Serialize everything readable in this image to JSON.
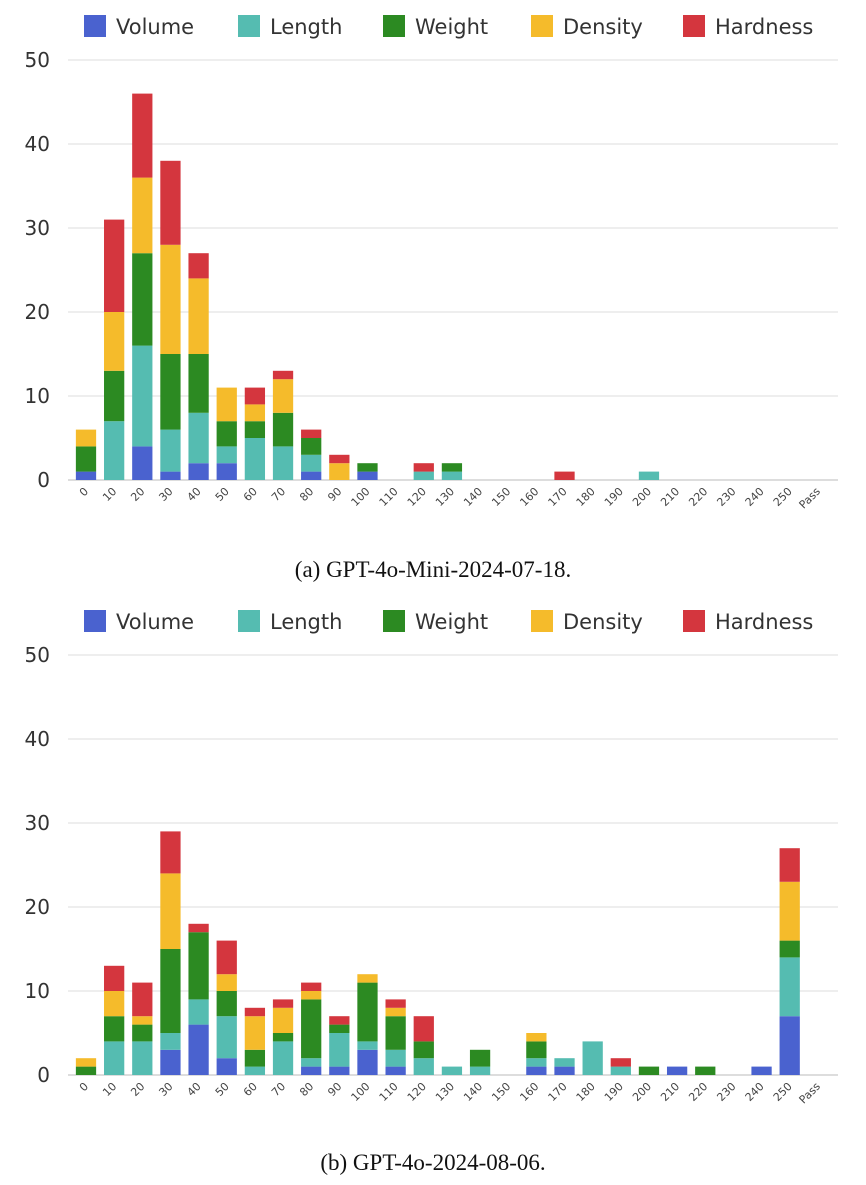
{
  "chart_data": [
    {
      "type": "bar",
      "stacked": true,
      "caption": "(a) GPT-4o-Mini-2024-07-18.",
      "categories": [
        "0",
        "10",
        "20",
        "30",
        "40",
        "50",
        "60",
        "70",
        "80",
        "90",
        "100",
        "110",
        "120",
        "130",
        "140",
        "150",
        "160",
        "170",
        "180",
        "190",
        "200",
        "210",
        "220",
        "230",
        "240",
        "250",
        "Pass"
      ],
      "series": [
        {
          "name": "Volume",
          "color": "#4a62cf",
          "values": [
            1,
            0,
            4,
            1,
            2,
            2,
            0,
            0,
            1,
            0,
            1,
            0,
            0,
            0,
            0,
            0,
            0,
            0,
            0,
            0,
            0,
            0,
            0,
            0,
            0,
            0,
            0
          ]
        },
        {
          "name": "Length",
          "color": "#55bcb1",
          "values": [
            0,
            7,
            12,
            5,
            6,
            2,
            5,
            4,
            2,
            0,
            0,
            0,
            1,
            1,
            0,
            0,
            0,
            0,
            0,
            0,
            1,
            0,
            0,
            0,
            0,
            0,
            0
          ]
        },
        {
          "name": "Weight",
          "color": "#2c8a22",
          "values": [
            3,
            6,
            11,
            9,
            7,
            3,
            2,
            4,
            2,
            0,
            1,
            0,
            0,
            1,
            0,
            0,
            0,
            0,
            0,
            0,
            0,
            0,
            0,
            0,
            0,
            0,
            0
          ]
        },
        {
          "name": "Density",
          "color": "#f5bb2b",
          "values": [
            2,
            7,
            9,
            13,
            9,
            4,
            2,
            4,
            0,
            2,
            0,
            0,
            0,
            0,
            0,
            0,
            0,
            0,
            0,
            0,
            0,
            0,
            0,
            0,
            0,
            0,
            0
          ]
        },
        {
          "name": "Hardness",
          "color": "#d4363e",
          "values": [
            0,
            11,
            10,
            10,
            3,
            0,
            2,
            1,
            1,
            1,
            0,
            0,
            1,
            0,
            0,
            0,
            0,
            1,
            0,
            0,
            0,
            0,
            0,
            0,
            0,
            0,
            0
          ]
        }
      ],
      "ylim": [
        0,
        50
      ],
      "yticks": [
        "0",
        "10",
        "20",
        "30",
        "40",
        "50"
      ],
      "grid": true,
      "legend": "top"
    },
    {
      "type": "bar",
      "stacked": true,
      "caption": "(b) GPT-4o-2024-08-06.",
      "categories": [
        "0",
        "10",
        "20",
        "30",
        "40",
        "50",
        "60",
        "70",
        "80",
        "90",
        "100",
        "110",
        "120",
        "130",
        "140",
        "150",
        "160",
        "170",
        "180",
        "190",
        "200",
        "210",
        "220",
        "230",
        "240",
        "250",
        "Pass"
      ],
      "series": [
        {
          "name": "Volume",
          "color": "#4a62cf",
          "values": [
            0,
            0,
            0,
            3,
            6,
            2,
            0,
            0,
            1,
            1,
            3,
            1,
            0,
            0,
            0,
            0,
            1,
            1,
            0,
            0,
            0,
            1,
            0,
            0,
            1,
            7,
            0
          ]
        },
        {
          "name": "Length",
          "color": "#55bcb1",
          "values": [
            0,
            4,
            4,
            2,
            3,
            5,
            1,
            4,
            1,
            4,
            1,
            2,
            2,
            1,
            1,
            0,
            1,
            1,
            4,
            1,
            0,
            0,
            0,
            0,
            0,
            7,
            0
          ]
        },
        {
          "name": "Weight",
          "color": "#2c8a22",
          "values": [
            1,
            3,
            2,
            10,
            8,
            3,
            2,
            1,
            7,
            1,
            7,
            4,
            2,
            0,
            2,
            0,
            2,
            0,
            0,
            0,
            1,
            0,
            1,
            0,
            0,
            2,
            0
          ]
        },
        {
          "name": "Density",
          "color": "#f5bb2b",
          "values": [
            1,
            3,
            1,
            9,
            0,
            2,
            4,
            3,
            1,
            0,
            1,
            1,
            0,
            0,
            0,
            0,
            1,
            0,
            0,
            0,
            0,
            0,
            0,
            0,
            0,
            7,
            0
          ]
        },
        {
          "name": "Hardness",
          "color": "#d4363e",
          "values": [
            0,
            3,
            4,
            5,
            1,
            4,
            1,
            1,
            1,
            1,
            0,
            1,
            3,
            0,
            0,
            0,
            0,
            0,
            0,
            1,
            0,
            0,
            0,
            0,
            0,
            4,
            0
          ]
        }
      ],
      "ylim": [
        0,
        50
      ],
      "yticks": [
        "0",
        "10",
        "20",
        "30",
        "40",
        "50"
      ],
      "grid": true,
      "legend": "top"
    }
  ]
}
